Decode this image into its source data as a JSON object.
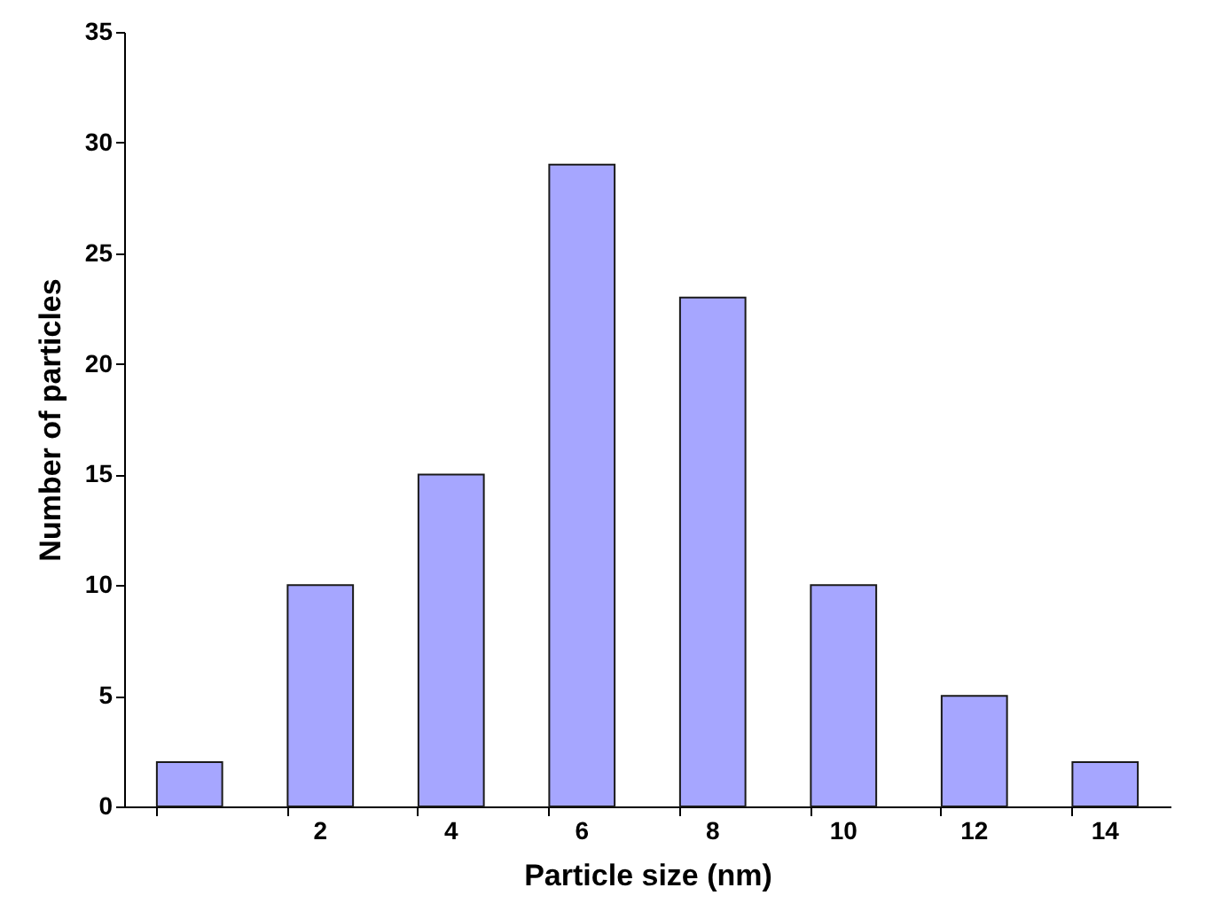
{
  "chart_data": {
    "type": "bar",
    "xlabel": "Particle size (nm)",
    "ylabel": "Number of particles",
    "categories": [
      null,
      "2",
      "4",
      "6",
      "8",
      "10",
      "12",
      "14"
    ],
    "values": [
      2,
      10,
      15,
      29,
      23,
      10,
      5,
      2
    ],
    "color": "#a6a6ff",
    "ylim": [
      0,
      35
    ],
    "yticks": [
      0,
      5,
      10,
      15,
      20,
      25,
      30,
      35
    ],
    "grid": false
  }
}
